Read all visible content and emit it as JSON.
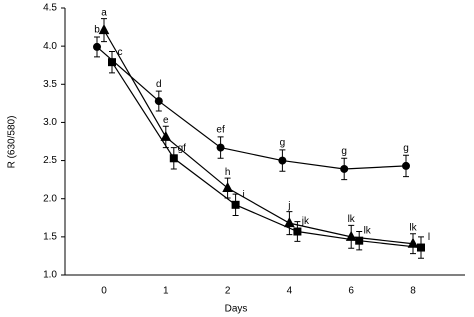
{
  "chart_data": {
    "type": "line",
    "x_label": "Days",
    "y_label": "R (630/580)",
    "categories": [
      "0",
      "1",
      "2",
      "4",
      "6",
      "8"
    ],
    "ylim": [
      1.0,
      4.5
    ],
    "yticks": [
      {
        "value": 1.0,
        "label": "1.0"
      },
      1.5,
      {
        "value": 2.0,
        "label": "2.0"
      },
      2.5,
      {
        "value": 3.0,
        "label": "3.0"
      },
      3.5,
      {
        "value": 4.0,
        "label": "4.0"
      },
      4.5
    ],
    "grid": false,
    "series": [
      {
        "marker": "circle",
        "color": "#000000",
        "values": [
          3.99,
          3.28,
          2.67,
          2.5,
          2.39,
          2.43
        ],
        "errors": [
          0.13,
          0.13,
          0.14,
          0.14,
          0.14,
          0.14
        ],
        "point_labels": [
          "b",
          "d",
          "ef",
          "g",
          "g",
          "g"
        ]
      },
      {
        "marker": "triangle",
        "color": "#000000",
        "values": [
          4.21,
          2.81,
          2.14,
          1.68,
          1.5,
          1.41
        ],
        "errors": [
          0.15,
          0.14,
          0.13,
          0.15,
          0.15,
          0.13
        ],
        "point_labels": [
          "a",
          "e",
          "h",
          "j",
          "lk",
          "lk"
        ]
      },
      {
        "marker": "square",
        "color": "#000000",
        "values": [
          3.79,
          2.53,
          1.92,
          1.57,
          1.45,
          1.36
        ],
        "errors": [
          0.14,
          0.14,
          0.14,
          0.13,
          0.12,
          0.14
        ],
        "point_labels": [
          "c",
          "gf",
          "i",
          "jk",
          "lk",
          "l"
        ]
      }
    ]
  }
}
